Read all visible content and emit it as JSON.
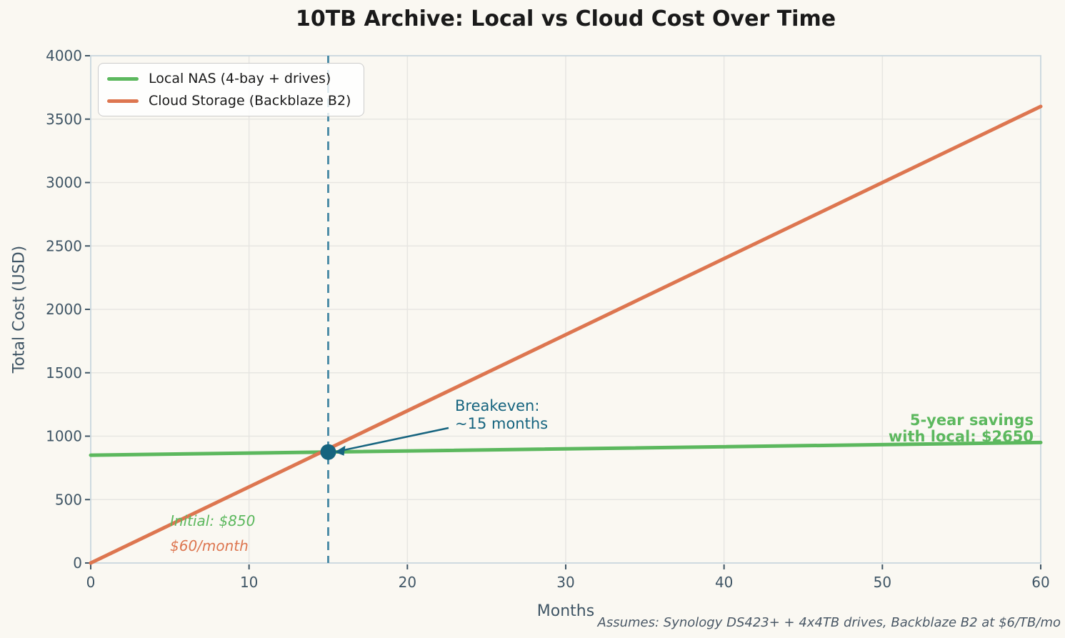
{
  "title": "10TB Archive: Local vs Cloud Cost Over Time",
  "axes": {
    "xlabel": "Months",
    "ylabel": "Total Cost (USD)"
  },
  "legend": {
    "items": [
      {
        "label": "Local NAS (4-bay + drives)",
        "color": "#5cb85e"
      },
      {
        "label": "Cloud Storage (Backblaze B2)",
        "color": "#dd7650"
      }
    ]
  },
  "annotations": {
    "breakeven_line1": "Breakeven:",
    "breakeven_line2": "~15 months",
    "initial_cost": "Initial: $850",
    "monthly_cost": "$60/month",
    "savings_line1": "5-year savings",
    "savings_line2": "with local: $2650",
    "footnote": "Assumes: Synology DS423+ + 4x4TB drives, Backblaze B2 at $6/TB/mo"
  },
  "colors": {
    "background": "#faf8f2",
    "local_line": "#5cb85e",
    "cloud_line": "#dd7650",
    "breakeven_accent": "#16647f",
    "vline": "#4f8ea8",
    "grid": "#e7e6e2",
    "spine": "#c9d6de",
    "tick_text": "#3f5565",
    "title_text": "#1a1a1a"
  },
  "chart_data": {
    "type": "line",
    "title": "10TB Archive: Local vs Cloud Cost Over Time",
    "xlabel": "Months",
    "ylabel": "Total Cost (USD)",
    "xlim": [
      0,
      60
    ],
    "ylim": [
      0,
      4000
    ],
    "xticks": [
      0,
      10,
      20,
      30,
      40,
      50,
      60
    ],
    "yticks": [
      0,
      500,
      1000,
      1500,
      2000,
      2500,
      3000,
      3500,
      4000
    ],
    "grid": true,
    "legend_position": "upper left",
    "series": [
      {
        "name": "Local NAS (4-bay + drives)",
        "color": "#5cb85e",
        "x": [
          0,
          60
        ],
        "y": [
          850,
          950
        ]
      },
      {
        "name": "Cloud Storage (Backblaze B2)",
        "color": "#dd7650",
        "x": [
          0,
          60
        ],
        "y": [
          0,
          3600
        ]
      }
    ],
    "breakeven": {
      "month": 15,
      "cost": 875
    },
    "vline_month": 15,
    "initial_local_cost_usd": 850,
    "cloud_monthly_cost_usd": 60,
    "five_year_savings_usd": 2650
  }
}
